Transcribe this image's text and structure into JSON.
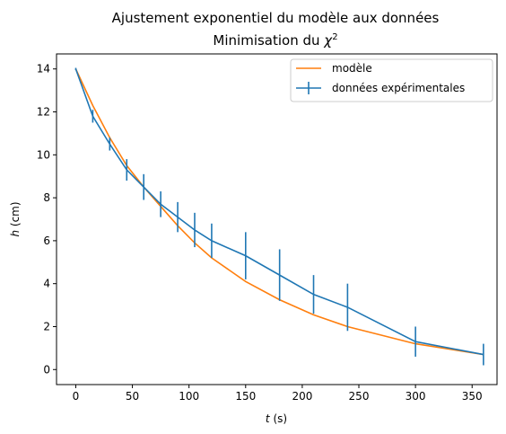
{
  "chart_data": {
    "type": "line",
    "title": "Ajustement exponentiel du modèle aux données",
    "subtitle": "Minimisation du χ²",
    "subtitle_text": "Minimisation du ",
    "subtitle_symbol": "χ",
    "subtitle_exponent": "2",
    "xlabel_var": "t",
    "xlabel_unit": " (s)",
    "ylabel_var": "h",
    "ylabel_unit": " (cm)",
    "xlim": [
      -17,
      372
    ],
    "ylim": [
      -0.7,
      14.7
    ],
    "xticks": [
      0,
      50,
      100,
      150,
      200,
      250,
      300,
      350
    ],
    "yticks": [
      0,
      2,
      4,
      6,
      8,
      10,
      12,
      14
    ],
    "grid": false,
    "legend_position": "top-right",
    "series": [
      {
        "name": "modèle",
        "color": "#ff7f0e",
        "x": [
          0,
          15,
          30,
          45,
          60,
          75,
          90,
          105,
          120,
          150,
          180,
          210,
          240,
          300,
          360
        ],
        "y": [
          14.0,
          12.3,
          10.8,
          9.5,
          8.5,
          7.6,
          6.7,
          5.9,
          5.2,
          4.1,
          3.25,
          2.55,
          2.0,
          1.2,
          0.7
        ]
      },
      {
        "name": "données expérimentales",
        "color": "#1f77b4",
        "x": [
          0,
          15,
          30,
          45,
          60,
          75,
          90,
          105,
          120,
          150,
          180,
          210,
          240,
          300,
          360
        ],
        "y": [
          14.0,
          11.8,
          10.5,
          9.3,
          8.5,
          7.7,
          7.1,
          6.5,
          6.0,
          5.3,
          4.4,
          3.5,
          2.9,
          1.3,
          0.7
        ],
        "yerr": [
          0.05,
          0.3,
          0.3,
          0.5,
          0.6,
          0.6,
          0.7,
          0.8,
          0.8,
          1.1,
          1.2,
          0.9,
          1.1,
          0.7,
          0.5
        ]
      }
    ]
  }
}
